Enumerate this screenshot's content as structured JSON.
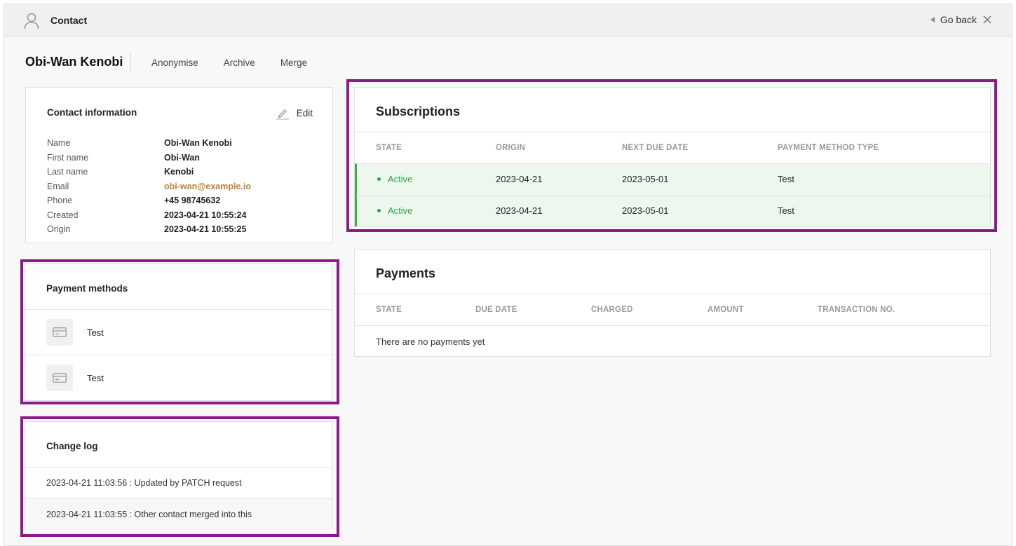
{
  "header": {
    "title": "Contact",
    "go_back": "Go back",
    "icons": [
      "user-icon",
      "close-icon",
      "back-arrow-icon"
    ]
  },
  "contact": {
    "name": "Obi-Wan Kenobi"
  },
  "actions": {
    "anonymise": "Anonymise",
    "archive": "Archive",
    "merge": "Merge"
  },
  "contact_info": {
    "title": "Contact information",
    "edit": "Edit",
    "rows": [
      {
        "label": "Name",
        "value": "Obi-Wan Kenobi"
      },
      {
        "label": "First name",
        "value": "Obi-Wan"
      },
      {
        "label": "Last name",
        "value": "Kenobi"
      },
      {
        "label": "Email",
        "value": "obi-wan@example.io"
      },
      {
        "label": "Phone",
        "value": "+45 98745632"
      },
      {
        "label": "Created",
        "value": "2023-04-21 10:55:24"
      },
      {
        "label": "Origin",
        "value": "2023-04-21 10:55:25"
      }
    ]
  },
  "payment_methods": {
    "title": "Payment methods",
    "items": [
      {
        "label": "Test"
      },
      {
        "label": "Test"
      }
    ]
  },
  "change_log": {
    "title": "Change log",
    "items": [
      "2023-04-21 11:03:56 : Updated by PATCH request",
      "2023-04-21 11:03:55 : Other contact merged into this"
    ]
  },
  "subscriptions": {
    "title": "Subscriptions",
    "columns": [
      "STATE",
      "ORIGIN",
      "NEXT DUE DATE",
      "PAYMENT METHOD TYPE"
    ],
    "rows": [
      {
        "state": "Active",
        "origin": "2023-04-21",
        "next_due": "2023-05-01",
        "method": "Test"
      },
      {
        "state": "Active",
        "origin": "2023-04-21",
        "next_due": "2023-05-01",
        "method": "Test"
      }
    ]
  },
  "payments": {
    "title": "Payments",
    "columns": [
      "STATE",
      "DUE DATE",
      "CHARGED",
      "AMOUNT",
      "TRANSACTION NO."
    ],
    "empty": "There are no payments yet"
  },
  "colors": {
    "highlight": "#8b1a8f",
    "active": "#2fa33d",
    "email": "#b8843a"
  }
}
